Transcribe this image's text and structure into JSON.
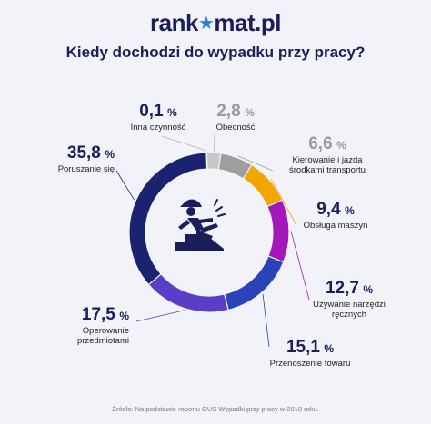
{
  "logo": {
    "left": "rank",
    "star": "★",
    "right": "mat.pl"
  },
  "colors": {
    "dark_navy": "#1a2370",
    "purple": "#5a3ec8",
    "light_blue": "#5aa6e6",
    "navy_blue": "#2b43b8",
    "magenta": "#a417b8",
    "orange": "#f0a500",
    "gray": "#9e9e9e",
    "light_gray": "#c8c8c8"
  },
  "chart_data": {
    "type": "pie",
    "title": "Kiedy dochodzi do wypadku przy pracy?",
    "unit": "%",
    "slices": [
      {
        "value": "0,1",
        "num": 0.1,
        "label": "Inna czynność",
        "color": "#c8c8c8"
      },
      {
        "value": "2,8",
        "num": 2.8,
        "label": "Obecność",
        "color": "#c8c8c8"
      },
      {
        "value": "6,6",
        "num": 6.6,
        "label": "Kierowanie i jazda środkami transportu",
        "color": "#9e9e9e"
      },
      {
        "value": "9,4",
        "num": 9.4,
        "label": "Obsługa maszyn",
        "color": "#f0a500"
      },
      {
        "value": "12,7",
        "num": 12.7,
        "label": "Używanie narzędzi ręcznych",
        "color": "#a417b8"
      },
      {
        "value": "15,1",
        "num": 15.1,
        "label": "Przenoszenie towaru",
        "color": "#2b43b8"
      },
      {
        "value": "17,5",
        "num": 17.5,
        "label": "Operowanie przedmiotami",
        "color": "#5a3ec8"
      },
      {
        "value": "35,8",
        "num": 35.8,
        "label": "Poruszanie się",
        "color": "#1a2370"
      }
    ]
  },
  "center_icon": "worker-falling-icon",
  "source": "Źródło: Na podstawie raportu GUS Wypadki przy pracy w 2018 roku."
}
